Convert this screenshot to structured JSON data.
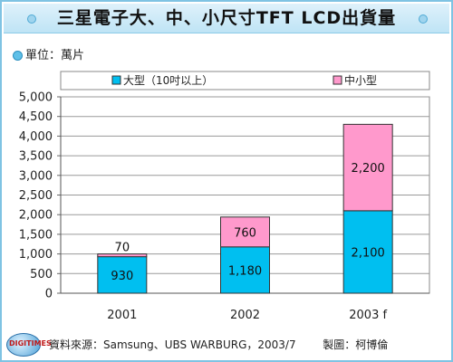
{
  "title": "三星電子大、中、小尺寸TFT LCD出貨量",
  "unit_label": "單位：萬片",
  "footer": {
    "source": "資料來源：Samsung、UBS WARBURG，2003/7",
    "author": "製圖：柯博倫"
  },
  "logo_text": "DIGITIMES",
  "chart_data": {
    "type": "bar",
    "stacked": true,
    "categories": [
      "2001",
      "2002",
      "2003 f"
    ],
    "series": [
      {
        "name": "大型（10吋以上）",
        "values": [
          930,
          1180,
          2100
        ],
        "color": "#00bff0"
      },
      {
        "name": "中小型",
        "values": [
          70,
          760,
          2200
        ],
        "color": "#ff99cc"
      }
    ],
    "value_labels": [
      [
        "930",
        "1,180",
        "2,100"
      ],
      [
        "70",
        "760",
        "2,200"
      ]
    ],
    "ylim": [
      0,
      5000
    ],
    "yticks": [
      0,
      500,
      1000,
      1500,
      2000,
      2500,
      3000,
      3500,
      4000,
      4500,
      5000
    ],
    "ytick_labels": [
      "0",
      "500",
      "1,000",
      "1,500",
      "2,000",
      "2,500",
      "3,000",
      "3,500",
      "4,000",
      "4,500",
      "5,000"
    ],
    "grid": true,
    "legend": "top"
  }
}
